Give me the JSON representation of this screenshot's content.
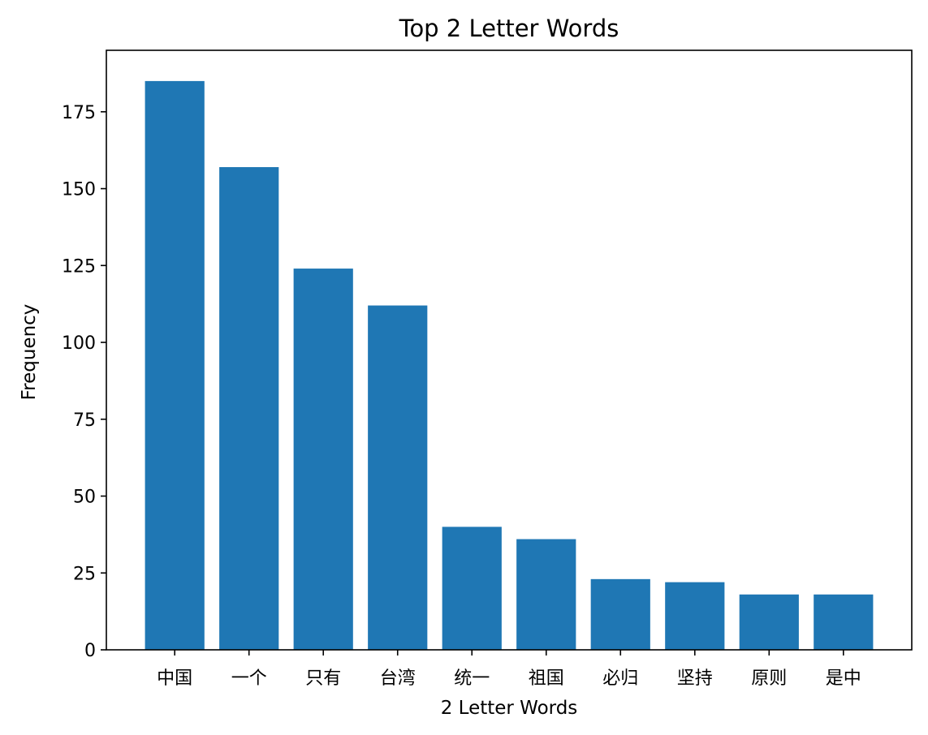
{
  "chart_data": {
    "type": "bar",
    "title": "Top 2 Letter Words",
    "xlabel": "2 Letter Words",
    "ylabel": "Frequency",
    "categories": [
      "中国",
      "一个",
      "只有",
      "台湾",
      "统一",
      "祖国",
      "必归",
      "坚持",
      "原则",
      "是中"
    ],
    "values": [
      185,
      157,
      124,
      112,
      40,
      36,
      23,
      22,
      18,
      18
    ],
    "ylim": [
      0,
      195
    ],
    "yticks": [
      0,
      25,
      50,
      75,
      100,
      125,
      150,
      175
    ],
    "bar_color": "#1f77b4",
    "grid": false,
    "legend": "none"
  }
}
